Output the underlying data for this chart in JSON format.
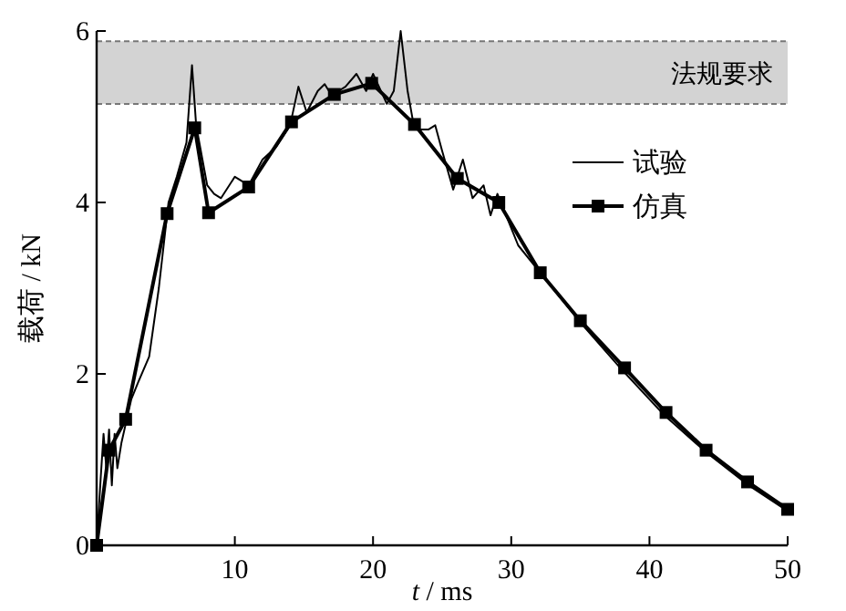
{
  "chart_data": {
    "type": "line",
    "xlabel": "*t* / ms",
    "ylabel": "载荷 / kN",
    "xlim": [
      0,
      50
    ],
    "ylim": [
      0,
      6
    ],
    "xticks": [
      10,
      20,
      30,
      40,
      50
    ],
    "yticks": [
      0,
      2,
      4,
      6
    ],
    "legend": "top right",
    "ref_lines": [
      {
        "axis": "y",
        "value": 5.88,
        "color": "#777777",
        "line_style": "dashed"
      },
      {
        "axis": "y",
        "value": 5.15,
        "color": "#777777",
        "line_style": "dashed"
      }
    ],
    "bands": [
      {
        "axis": "y",
        "from": 5.15,
        "to": 5.88,
        "label": "法规要求",
        "color": "#d3d3d3"
      }
    ],
    "series": [
      {
        "name": "试验",
        "color": "#000000",
        "marker": "none",
        "x": [
          0,
          0.3,
          0.5,
          0.7,
          0.9,
          1.1,
          1.3,
          1.5,
          1.8,
          2.5,
          3,
          3.8,
          4.5,
          5.2,
          5.8,
          6.5,
          6.9,
          7.2,
          8,
          8.5,
          9,
          10,
          11,
          12,
          13,
          14,
          14.6,
          15.2,
          16,
          16.5,
          17,
          18,
          18.8,
          19.5,
          20,
          21,
          21.5,
          22,
          22.5,
          23,
          24,
          24.5,
          25,
          25.8,
          26.5,
          27.2,
          28,
          28.5,
          29,
          29.5,
          30.5,
          31.5,
          32,
          35,
          38,
          41,
          44,
          47,
          50
        ],
        "values": [
          0,
          0.8,
          1.3,
          0.9,
          1.35,
          0.7,
          1.3,
          0.9,
          1.2,
          1.7,
          1.9,
          2.2,
          3.0,
          4.0,
          4.3,
          4.7,
          5.6,
          4.9,
          4.2,
          4.1,
          4.05,
          4.3,
          4.2,
          4.5,
          4.65,
          4.9,
          5.35,
          5.05,
          5.3,
          5.38,
          5.25,
          5.35,
          5.5,
          5.3,
          5.5,
          5.15,
          5.3,
          6.0,
          5.3,
          4.85,
          4.85,
          4.9,
          4.6,
          4.15,
          4.5,
          4.05,
          4.2,
          3.85,
          4.1,
          3.9,
          3.5,
          3.3,
          3.2,
          2.6,
          2.05,
          1.53,
          1.1,
          0.72,
          0.4
        ]
      },
      {
        "name": "仿真",
        "color": "#000000",
        "marker": "square",
        "x": [
          0,
          0.9,
          2.1,
          5.1,
          7.1,
          8.1,
          11,
          14.1,
          17.2,
          19.9,
          23,
          26.1,
          29.1,
          32.1,
          35,
          38.2,
          41.2,
          44.1,
          47.1,
          50
        ],
        "values": [
          0,
          1.11,
          1.47,
          3.87,
          4.87,
          3.88,
          4.18,
          4.94,
          5.26,
          5.39,
          4.91,
          4.28,
          4.0,
          3.18,
          2.62,
          2.07,
          1.55,
          1.11,
          0.74,
          0.42
        ]
      }
    ]
  }
}
